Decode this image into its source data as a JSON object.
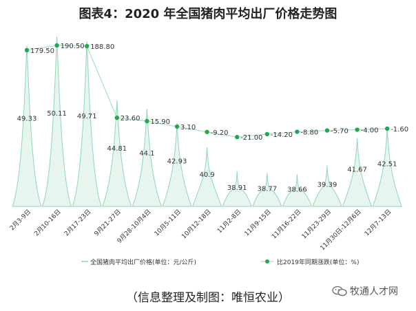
{
  "chart_data": {
    "type": "bar+line",
    "title": "图表4：2020 年全国猪肉平均出厂价格走势图",
    "categories": [
      "2月3-9日",
      "2月10-16日",
      "2月17-23日",
      "9月21-27日",
      "9月28-10月4日",
      "10月5-11日",
      "10月12-18日",
      "11月2-8日",
      "11月9-15日",
      "11月16-22日",
      "11月23-29日",
      "11月30日-12月6日",
      "12月7-13日"
    ],
    "series": [
      {
        "name": "全国猪肉平均出厂价格(单位：元/公斤)",
        "kind": "bar",
        "values": [
          49.33,
          50.11,
          49.71,
          44.81,
          44.1,
          42.93,
          40.9,
          38.91,
          38.77,
          38.66,
          39.39,
          41.67,
          42.51
        ],
        "labels": [
          "49.33",
          "50.11",
          "49.71",
          "44.81",
          "44.1",
          "42.93",
          "40.9",
          "38.91",
          "38.77",
          "38.66",
          "39.39",
          "41.67",
          "42.51"
        ]
      },
      {
        "name": "比2019年同期涨跌(单位：%)",
        "kind": "line",
        "values": [
          179.5,
          190.5,
          188.8,
          23.6,
          15.9,
          3.1,
          -9.2,
          -21.0,
          -14.2,
          -8.8,
          -5.7,
          -4.0,
          -1.6
        ],
        "labels": [
          "179.50",
          "190.50",
          "188.80",
          "23.60",
          "15.90",
          "3.10",
          "-9.20",
          "-21.00",
          "-14.20",
          "-8.80",
          "-5.70",
          "-4.00",
          "-1.60"
        ]
      }
    ],
    "colors": {
      "bar_stroke": "#8fd6b4",
      "bar_fill": "#e6f6ee",
      "line": "#a8dfc3",
      "marker": "#22a84a",
      "text": "#333333"
    },
    "grid": false,
    "legend_position": "bottom"
  },
  "source_note": "（信息整理及制图：唯恒农业）",
  "watermark": "牧通人才网"
}
